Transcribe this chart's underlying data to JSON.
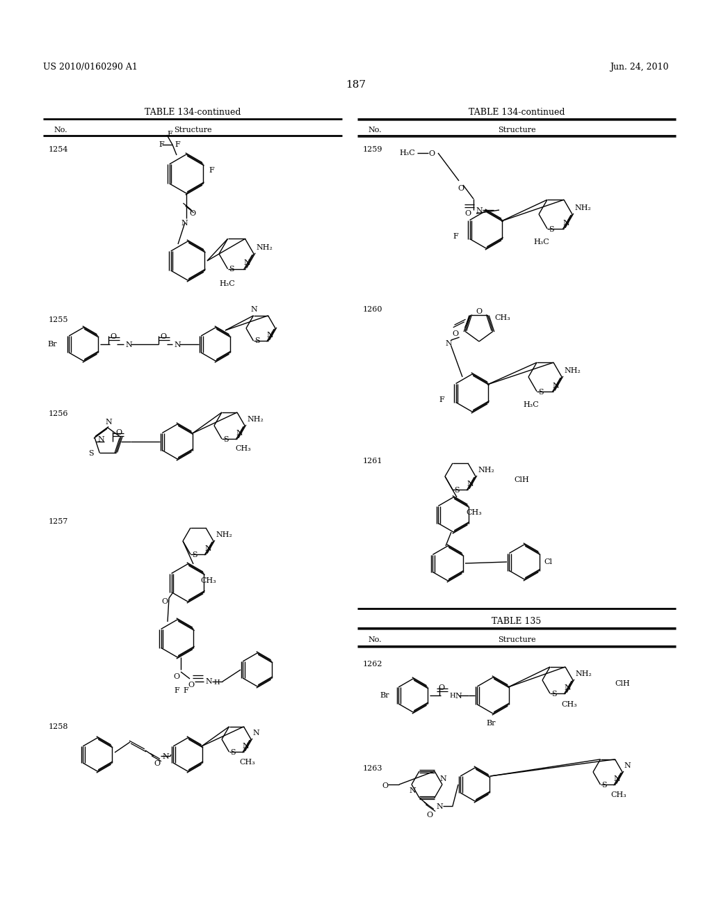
{
  "background_color": "#ffffff",
  "header_left": "US 2010/0160290 A1",
  "header_right": "Jun. 24, 2010",
  "page_number": "187"
}
